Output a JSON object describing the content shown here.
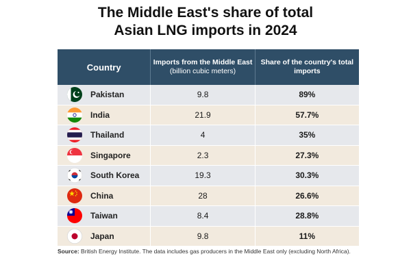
{
  "title_line1": "The Middle East's share of total",
  "title_line2": "Asian LNG imports in 2024",
  "header": {
    "country": "Country",
    "imports_bold": "Imports from the Middle East",
    "imports_rest": "(billion cubic meters)",
    "share": "Share of the country's total imports"
  },
  "rows": [
    {
      "country": "Pakistan",
      "imports": "9.8",
      "share": "89%",
      "flag": "pakistan-flag-icon"
    },
    {
      "country": "India",
      "imports": "21.9",
      "share": "57.7%",
      "flag": "india-flag-icon"
    },
    {
      "country": "Thailand",
      "imports": "4",
      "share": "35%",
      "flag": "thailand-flag-icon"
    },
    {
      "country": "Singapore",
      "imports": "2.3",
      "share": "27.3%",
      "flag": "singapore-flag-icon"
    },
    {
      "country": "South Korea",
      "imports": "19.3",
      "share": "30.3%",
      "flag": "south-korea-flag-icon"
    },
    {
      "country": "China",
      "imports": "28",
      "share": "26.6%",
      "flag": "china-flag-icon"
    },
    {
      "country": "Taiwan",
      "imports": "8.4",
      "share": "28.8%",
      "flag": "taiwan-flag-icon"
    },
    {
      "country": "Japan",
      "imports": "9.8",
      "share": "11%",
      "flag": "japan-flag-icon"
    }
  ],
  "source": {
    "label": "Source:",
    "text": "British Energy Institute. The data includes gas producers in the Middle East only (excluding North Africa)."
  },
  "colors": {
    "header_bg": "#2f4e67",
    "row_odd": "#e6e8ec",
    "row_even": "#f2eade"
  }
}
